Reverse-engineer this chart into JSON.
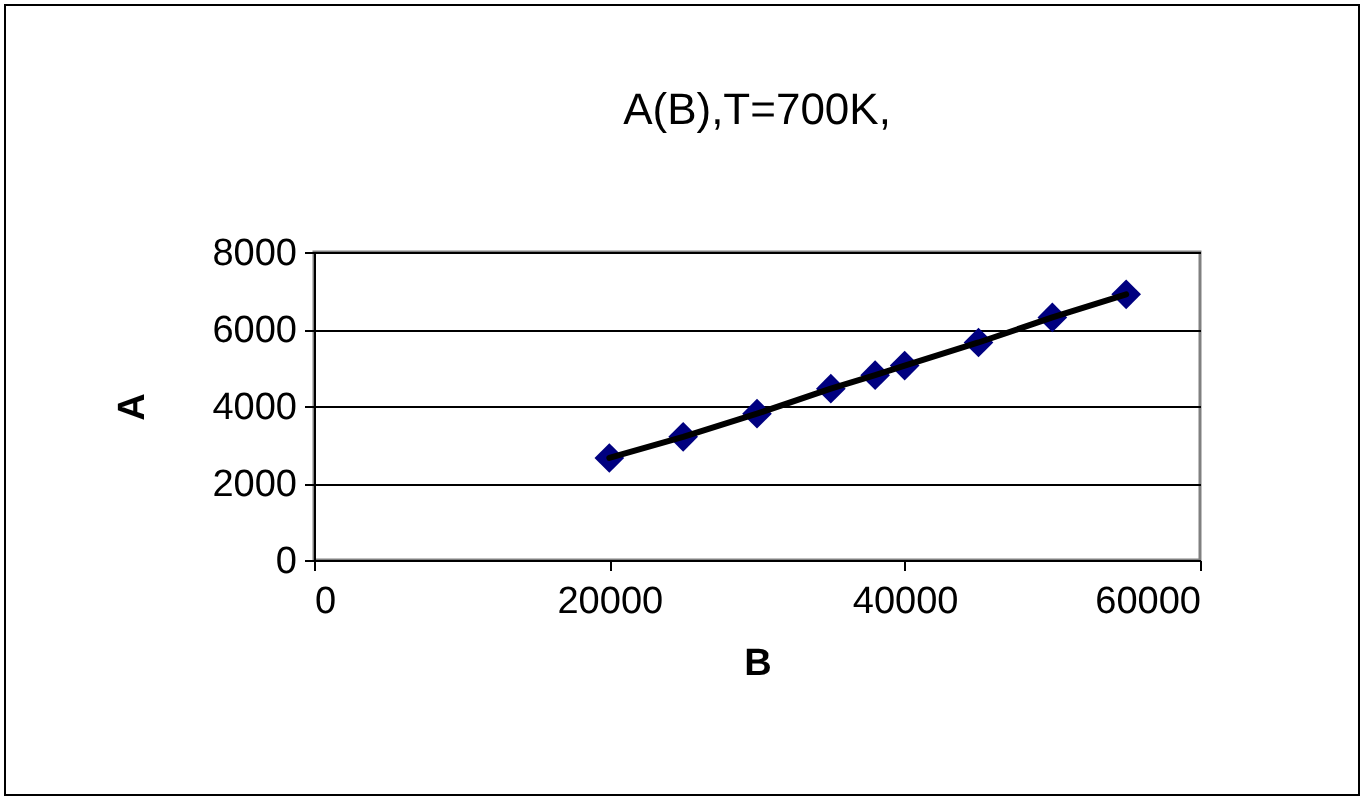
{
  "chart_data": {
    "type": "line",
    "title": "A(B),T=700K,",
    "xlabel": "B",
    "ylabel": "A",
    "x": [
      20000,
      25000,
      30000,
      35000,
      38000,
      40000,
      45000,
      50000,
      55000
    ],
    "series": [
      {
        "type": "scatter",
        "color": "#000080",
        "marker": "diamond",
        "values": [
          2650,
          3200,
          3800,
          4450,
          4800,
          5050,
          5650,
          6300,
          6900
        ]
      },
      {
        "type": "line",
        "color": "#000000",
        "marker": "none",
        "line_style": "solid",
        "values": [
          2650,
          3200,
          3800,
          4450,
          4800,
          5050,
          5650,
          6300,
          6900
        ]
      }
    ],
    "xlim": [
      0,
      60000
    ],
    "xticks": [
      0,
      20000,
      40000,
      60000
    ],
    "ylim": [
      0,
      8000
    ],
    "yticks": [
      0,
      2000,
      4000,
      6000,
      8000
    ],
    "grid": "y"
  }
}
